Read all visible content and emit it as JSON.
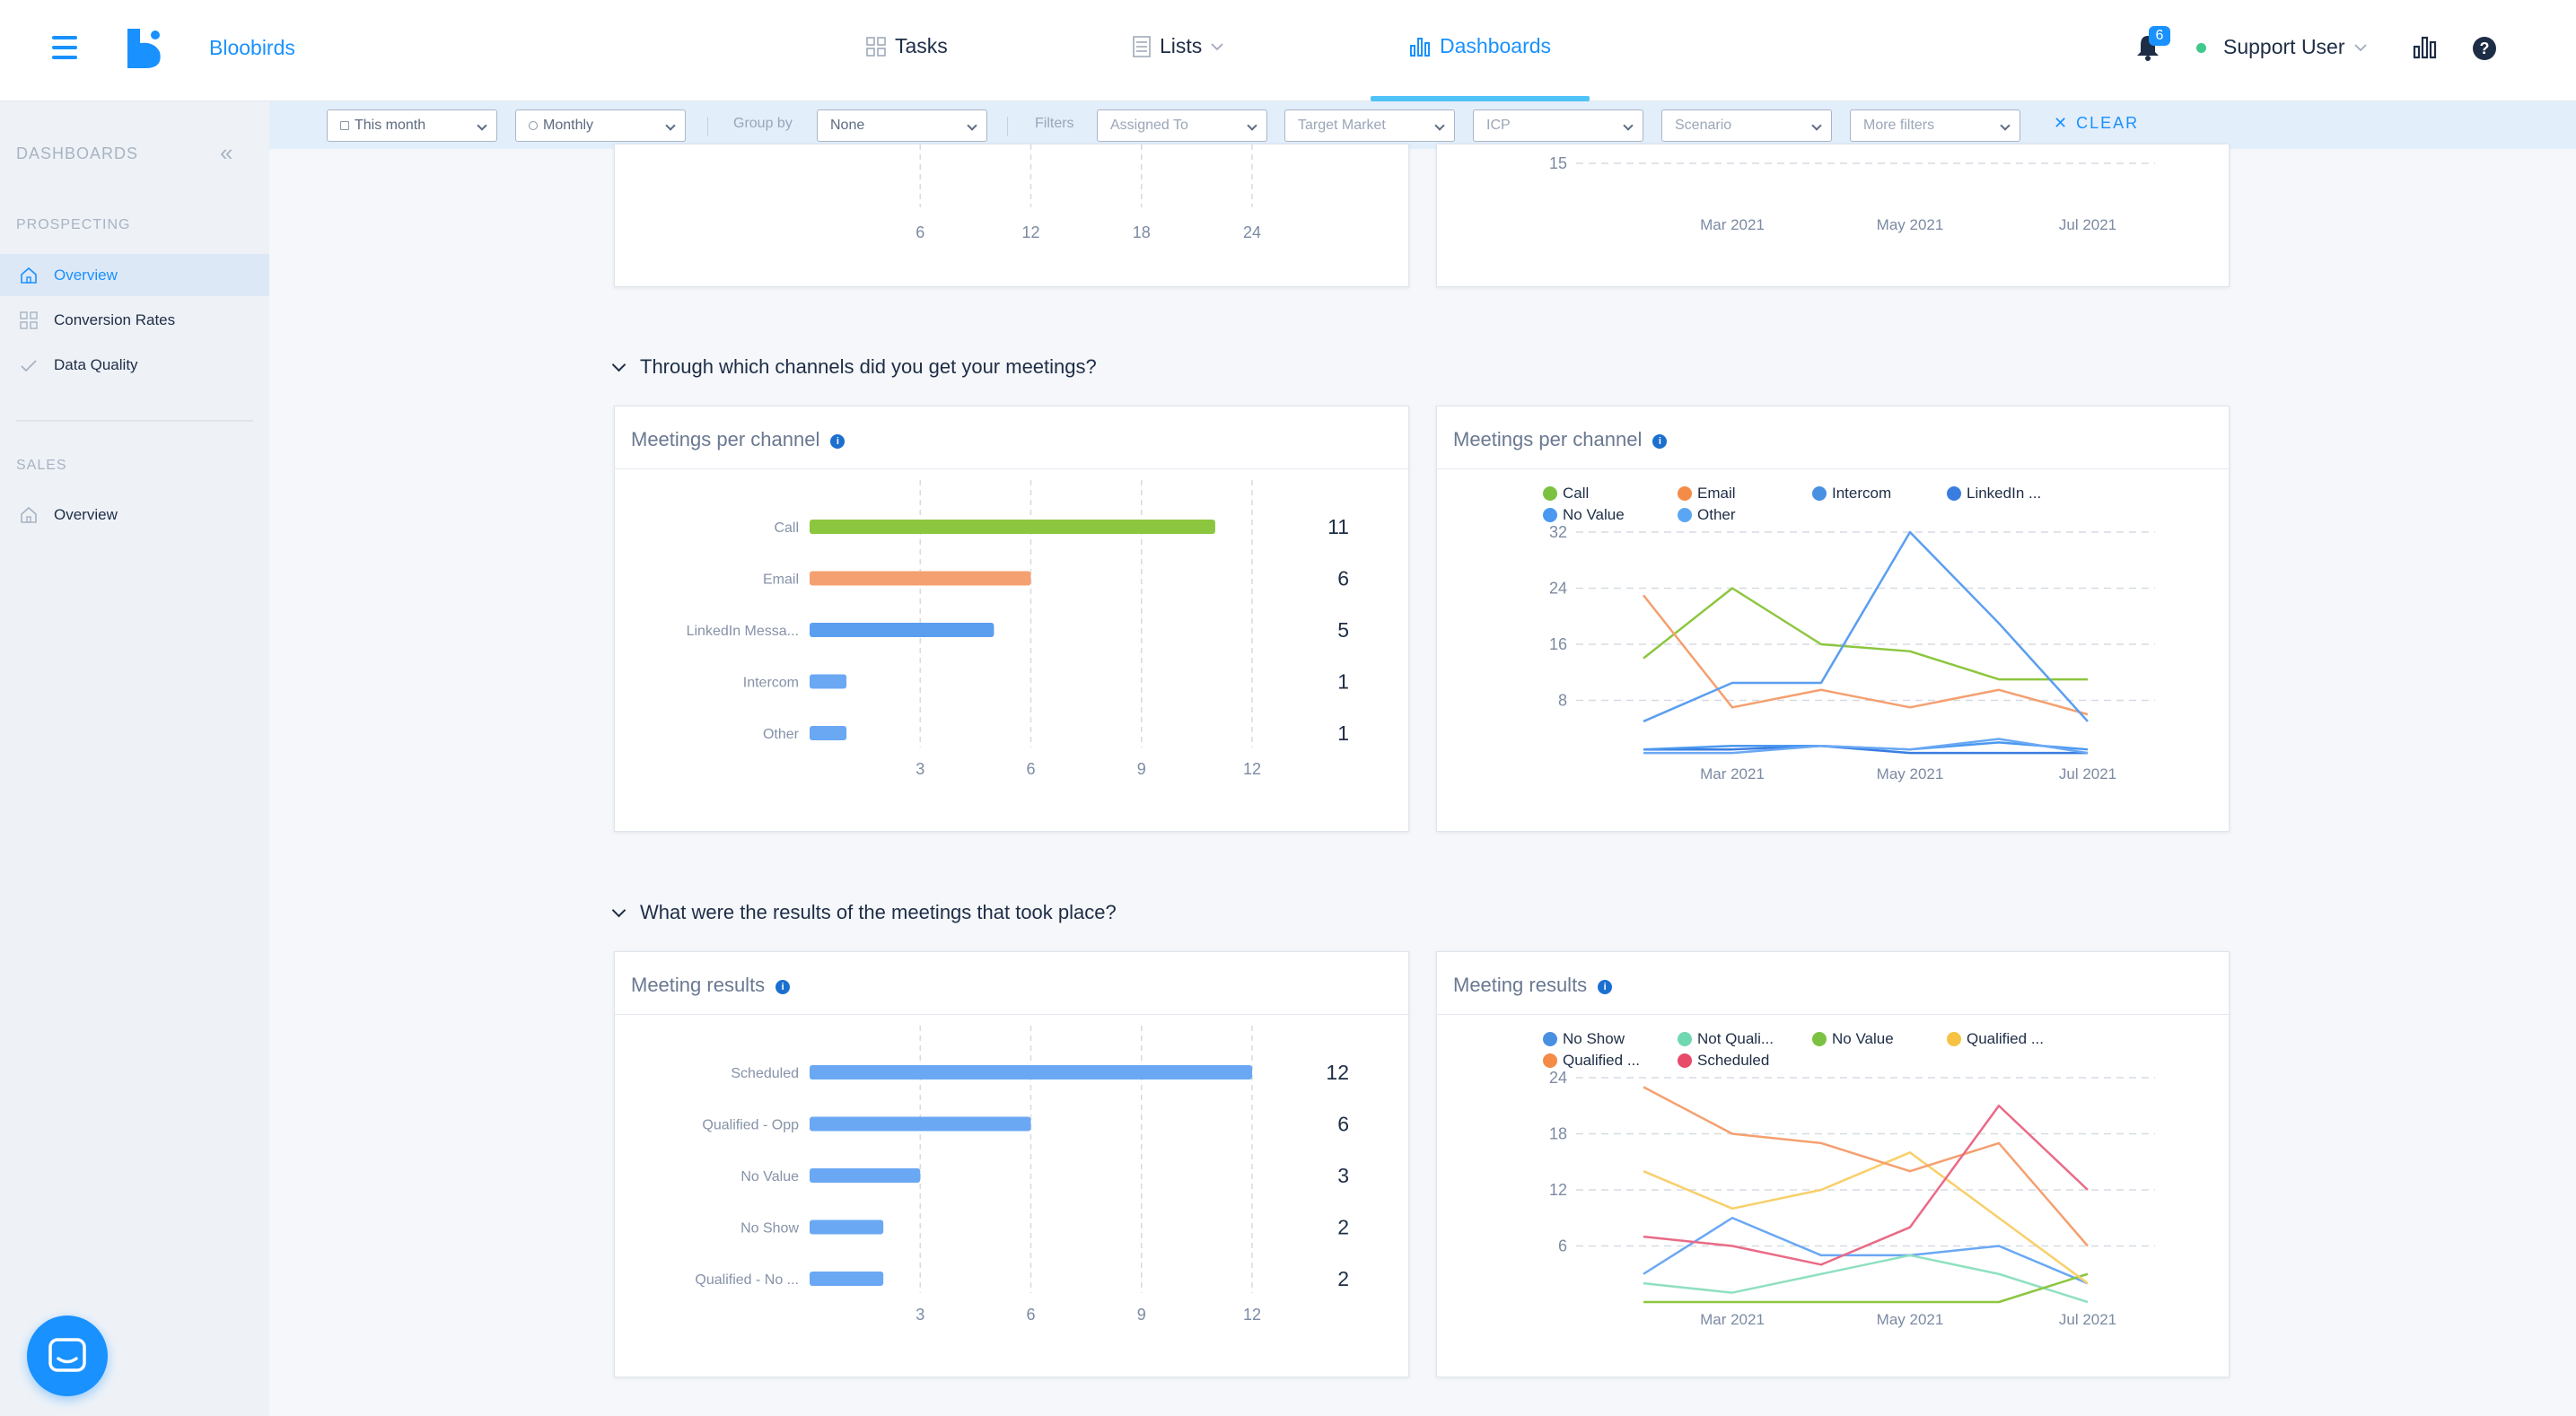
{
  "header": {
    "brand": "Bloobirds",
    "nav": [
      {
        "label": "Tasks",
        "icon": "grid-icon"
      },
      {
        "label": "Lists",
        "icon": "list-icon"
      },
      {
        "label": "Dashboards",
        "icon": "bar-chart-icon"
      }
    ],
    "notifications_count": "6",
    "user_name": "Support User",
    "accent_color": "#1991ff"
  },
  "filters": {
    "date_range": "This month",
    "granularity": "Monthly",
    "group_by_label": "Group by",
    "group_by_value": "None",
    "filters_label": "Filters",
    "assigned_to": "Assigned To",
    "target_market": "Target Market",
    "icp": "ICP",
    "scenario": "Scenario",
    "more_filters": "More filters",
    "clear_label": "CLEAR"
  },
  "sidebar": {
    "title": "DASHBOARDS",
    "sections": [
      {
        "name": "PROSPECTING",
        "items": [
          "Overview",
          "Conversion Rates",
          "Data Quality"
        ]
      },
      {
        "name": "SALES",
        "items": [
          "Overview"
        ]
      }
    ]
  },
  "sections": {
    "channels_question": "Through which channels did you get your meetings?",
    "results_question": "What were the results of the meetings that took place?"
  },
  "cards": {
    "channel_bar_title": "Meetings per channel",
    "channel_line_title": "Meetings per channel",
    "results_bar_title": "Meeting results",
    "results_line_title": "Meeting results"
  },
  "chart_data": [
    {
      "id": "partial_top_bar",
      "type": "bar",
      "x_ticks": [
        "6",
        "12",
        "18",
        "24"
      ]
    },
    {
      "id": "partial_top_line",
      "type": "line",
      "y_ticks": [
        "15"
      ],
      "x_ticks": [
        "Mar 2021",
        "May 2021",
        "Jul 2021"
      ]
    },
    {
      "id": "channels_bar",
      "type": "bar",
      "title": "Meetings per channel",
      "orientation": "horizontal",
      "categories": [
        "Call",
        "Email",
        "LinkedIn Messa...",
        "Intercom",
        "Other"
      ],
      "values": [
        11,
        6,
        5,
        1,
        1
      ],
      "colors": [
        "#8cc63f",
        "#f4a070",
        "#5b9ef0",
        "#6aa8f4",
        "#6aa8f4"
      ],
      "x_ticks": [
        3,
        6,
        9,
        12
      ],
      "xlim": [
        0,
        12
      ]
    },
    {
      "id": "channels_line",
      "type": "line",
      "title": "Meetings per channel",
      "legend": [
        {
          "name": "Call",
          "color": "#7cc242"
        },
        {
          "name": "Email",
          "color": "#f48b47"
        },
        {
          "name": "Intercom",
          "color": "#4a90e2"
        },
        {
          "name": "LinkedIn ...",
          "color": "#3a7de0"
        },
        {
          "name": "No Value",
          "color": "#4a98f0"
        },
        {
          "name": "Other",
          "color": "#5aa6f2"
        }
      ],
      "x_ticks": [
        "Mar 2021",
        "May 2021",
        "Jul 2021"
      ],
      "y_ticks": [
        8,
        16,
        24,
        32
      ],
      "ylim": [
        0,
        32
      ],
      "series": [
        {
          "name": "Call",
          "color": "#8cc63f",
          "values": [
            14,
            24,
            16,
            15,
            11,
            11
          ]
        },
        {
          "name": "Email",
          "color": "#f4a070",
          "values": [
            23,
            7,
            9.5,
            7,
            9.5,
            6
          ]
        },
        {
          "name": "Intercom",
          "color": "#5b9ef0",
          "values": [
            5,
            10.5,
            10.5,
            32,
            19,
            5
          ]
        },
        {
          "name": "LinkedIn ...",
          "color": "#3a7de0",
          "values": [
            1,
            1,
            1.5,
            0.5,
            0.5,
            0.5
          ]
        },
        {
          "name": "No Value",
          "color": "#4a98f0",
          "values": [
            1,
            1.5,
            1.5,
            1,
            2,
            1
          ]
        },
        {
          "name": "Other",
          "color": "#6aa8f4",
          "values": [
            0.5,
            0.5,
            1.5,
            1,
            2.5,
            0.5
          ]
        }
      ]
    },
    {
      "id": "results_bar",
      "type": "bar",
      "title": "Meeting results",
      "orientation": "horizontal",
      "categories": [
        "Scheduled",
        "Qualified - Opp",
        "No Value",
        "No Show",
        "Qualified - No ..."
      ],
      "values": [
        12,
        6,
        3,
        2,
        2
      ],
      "colors": [
        "#6aa8f4",
        "#6aa8f4",
        "#6aa8f4",
        "#6aa8f4",
        "#6aa8f4"
      ],
      "x_ticks": [
        3,
        6,
        9,
        12
      ],
      "xlim": [
        0,
        12
      ]
    },
    {
      "id": "results_line",
      "type": "line",
      "title": "Meeting results",
      "legend": [
        {
          "name": "No Show",
          "color": "#4a90e2"
        },
        {
          "name": "Not Quali...",
          "color": "#6fd8b0"
        },
        {
          "name": "No Value",
          "color": "#7cc242"
        },
        {
          "name": "Qualified ...",
          "color": "#f5c242"
        },
        {
          "name": "Qualified ...",
          "color": "#f48b47"
        },
        {
          "name": "Scheduled",
          "color": "#e84a6a"
        }
      ],
      "x_ticks": [
        "Mar 2021",
        "May 2021",
        "Jul 2021"
      ],
      "y_ticks": [
        6,
        12,
        18,
        24
      ],
      "ylim": [
        0,
        24
      ],
      "series": [
        {
          "name": "No Show",
          "color": "#6aa8f4",
          "values": [
            3,
            9,
            5,
            5,
            6,
            2
          ]
        },
        {
          "name": "Not Quali...",
          "color": "#8fe0c0",
          "values": [
            2,
            1,
            3,
            5,
            3,
            0
          ]
        },
        {
          "name": "No Value",
          "color": "#8cc63f",
          "values": [
            0,
            0,
            0,
            0,
            0,
            3
          ]
        },
        {
          "name": "Qualified ...",
          "color": "#f8cf6a",
          "values": [
            14,
            10,
            12,
            16,
            9,
            2
          ]
        },
        {
          "name": "Qualified ...",
          "color": "#f4a070",
          "values": [
            23,
            18,
            17,
            14,
            17,
            6
          ]
        },
        {
          "name": "Scheduled",
          "color": "#ea6a86",
          "values": [
            7,
            6,
            4,
            8,
            21,
            12
          ]
        }
      ]
    }
  ]
}
